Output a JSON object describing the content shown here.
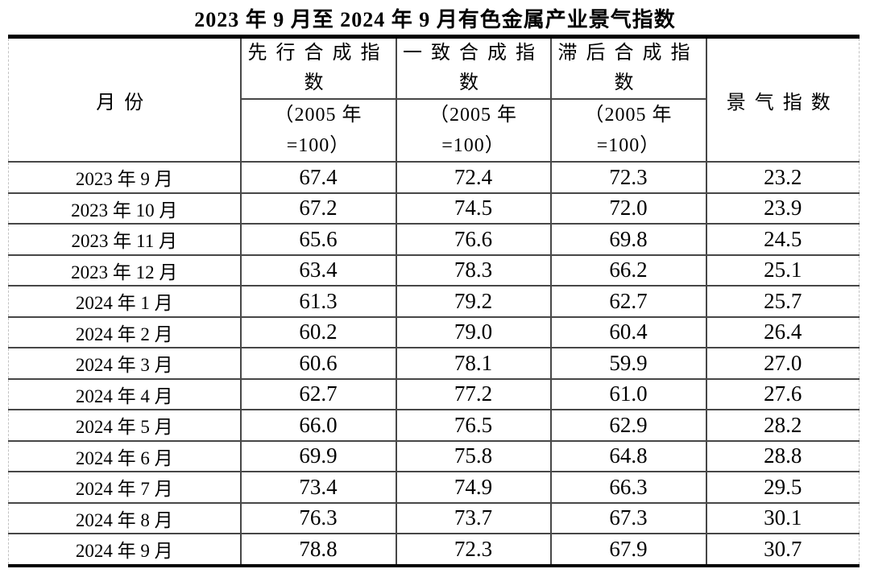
{
  "title": "2023 年 9 月至 2024 年 9 月有色金属产业景气指数",
  "table": {
    "headers": {
      "month": "月份",
      "leading": "先行合成指\n数",
      "coincident": "一致合成指\n数",
      "lagging": "滞后合成指\n数",
      "prosperity": "景气指数",
      "base_note": "（2005 年\n=100）"
    },
    "rows": [
      {
        "month": "2023 年 9 月",
        "leading": "67.4",
        "coincident": "72.4",
        "lagging": "72.3",
        "prosperity": "23.2"
      },
      {
        "month": "2023 年 10 月",
        "leading": "67.2",
        "coincident": "74.5",
        "lagging": "72.0",
        "prosperity": "23.9"
      },
      {
        "month": "2023 年 11 月",
        "leading": "65.6",
        "coincident": "76.6",
        "lagging": "69.8",
        "prosperity": "24.5"
      },
      {
        "month": "2023 年 12 月",
        "leading": "63.4",
        "coincident": "78.3",
        "lagging": "66.2",
        "prosperity": "25.1"
      },
      {
        "month": "2024 年 1 月",
        "leading": "61.3",
        "coincident": "79.2",
        "lagging": "62.7",
        "prosperity": "25.7"
      },
      {
        "month": "2024 年 2 月",
        "leading": "60.2",
        "coincident": "79.0",
        "lagging": "60.4",
        "prosperity": "26.4"
      },
      {
        "month": "2024 年 3 月",
        "leading": "60.6",
        "coincident": "78.1",
        "lagging": "59.9",
        "prosperity": "27.0"
      },
      {
        "month": "2024 年 4 月",
        "leading": "62.7",
        "coincident": "77.2",
        "lagging": "61.0",
        "prosperity": "27.6"
      },
      {
        "month": "2024 年 5 月",
        "leading": "66.0",
        "coincident": "76.5",
        "lagging": "62.9",
        "prosperity": "28.2"
      },
      {
        "month": "2024 年 6 月",
        "leading": "69.9",
        "coincident": "75.8",
        "lagging": "64.8",
        "prosperity": "28.8"
      },
      {
        "month": "2024 年 7 月",
        "leading": "73.4",
        "coincident": "74.9",
        "lagging": "66.3",
        "prosperity": "29.5"
      },
      {
        "month": "2024 年 8 月",
        "leading": "76.3",
        "coincident": "73.7",
        "lagging": "67.3",
        "prosperity": "30.1"
      },
      {
        "month": "2024 年 9 月",
        "leading": "78.8",
        "coincident": "72.3",
        "lagging": "67.9",
        "prosperity": "30.7"
      }
    ]
  },
  "colors": {
    "background": "#ffffff",
    "text": "#000000",
    "border_heavy": "#000000",
    "border_inner": "#474747",
    "border_edge_dashed": "#c3c3c3"
  },
  "chart_data": {
    "type": "table",
    "title": "2023 年 9 月至 2024 年 9 月有色金属产业景气指数",
    "columns": [
      "月份",
      "先行合成指数（2005 年=100）",
      "一致合成指数（2005 年=100）",
      "滞后合成指数（2005 年=100）",
      "景气指数"
    ],
    "categories": [
      "2023年9月",
      "2023年10月",
      "2023年11月",
      "2023年12月",
      "2024年1月",
      "2024年2月",
      "2024年3月",
      "2024年4月",
      "2024年5月",
      "2024年6月",
      "2024年7月",
      "2024年8月",
      "2024年9月"
    ],
    "series": [
      {
        "name": "先行合成指数（2005 年=100）",
        "values": [
          67.4,
          67.2,
          65.6,
          63.4,
          61.3,
          60.2,
          60.6,
          62.7,
          66.0,
          69.9,
          73.4,
          76.3,
          78.8
        ]
      },
      {
        "name": "一致合成指数（2005 年=100）",
        "values": [
          72.4,
          74.5,
          76.6,
          78.3,
          79.2,
          79.0,
          78.1,
          77.2,
          76.5,
          75.8,
          74.9,
          73.7,
          72.3
        ]
      },
      {
        "name": "滞后合成指数（2005 年=100）",
        "values": [
          72.3,
          72.0,
          69.8,
          66.2,
          62.7,
          60.4,
          59.9,
          61.0,
          62.9,
          64.8,
          66.3,
          67.3,
          67.9
        ]
      },
      {
        "name": "景气指数",
        "values": [
          23.2,
          23.9,
          24.5,
          25.1,
          25.7,
          26.4,
          27.0,
          27.6,
          28.2,
          28.8,
          29.5,
          30.1,
          30.7
        ]
      }
    ]
  }
}
